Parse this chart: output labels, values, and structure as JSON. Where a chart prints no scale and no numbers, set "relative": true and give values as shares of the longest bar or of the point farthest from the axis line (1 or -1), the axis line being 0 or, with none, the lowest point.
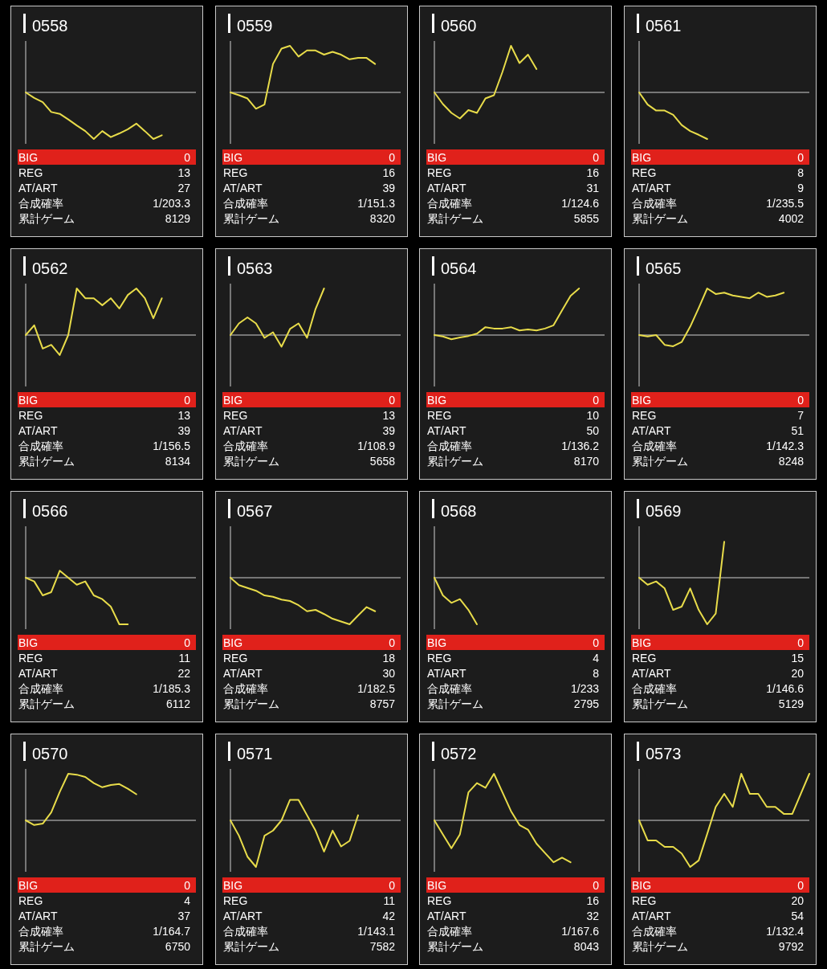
{
  "chart_data": [
    {
      "type": "line",
      "title": "0558",
      "relative": true,
      "categories": [
        null,
        null,
        null,
        null,
        null,
        null,
        null,
        null,
        null,
        null,
        null,
        null,
        null,
        null,
        null,
        null,
        null,
        null,
        null,
        null,
        null
      ],
      "series": [
        {
          "color": "#e8dc4a",
          "values": [
            0,
            -0.12,
            -0.21,
            -0.42,
            -0.46,
            -0.58,
            -0.71,
            -0.83,
            -1,
            -0.83,
            -0.96,
            -0.88,
            -0.79,
            -0.67,
            -0.83,
            -1,
            -0.92,
            null,
            null,
            null,
            null
          ]
        }
      ],
      "annotations": [
        "BIG",
        "0",
        "REG",
        "13",
        "AT/ART",
        "27",
        "合成確率",
        "1/203.3",
        "累計ゲーム",
        "8129"
      ]
    },
    {
      "type": "line",
      "title": "0559",
      "relative": true,
      "categories": [
        null,
        null,
        null,
        null,
        null,
        null,
        null,
        null,
        null,
        null,
        null,
        null,
        null,
        null,
        null,
        null,
        null,
        null,
        null,
        null,
        null
      ],
      "series": [
        {
          "color": "#e8dc4a",
          "values": [
            0,
            -0.06,
            -0.13,
            -0.35,
            -0.26,
            0.61,
            0.94,
            1,
            0.77,
            0.9,
            0.9,
            0.81,
            0.87,
            0.81,
            0.71,
            0.74,
            0.74,
            0.61,
            null,
            null,
            null
          ]
        }
      ],
      "annotations": [
        "BIG",
        "0",
        "REG",
        "16",
        "AT/ART",
        "39",
        "合成確率",
        "1/151.3",
        "累計ゲーム",
        "8320"
      ]
    },
    {
      "type": "line",
      "title": "0560",
      "relative": true,
      "categories": [
        null,
        null,
        null,
        null,
        null,
        null,
        null,
        null,
        null,
        null,
        null,
        null,
        null,
        null,
        null,
        null,
        null,
        null,
        null,
        null,
        null
      ],
      "series": [
        {
          "color": "#e8dc4a",
          "values": [
            0,
            -0.25,
            -0.44,
            -0.56,
            -0.38,
            -0.44,
            -0.13,
            -0.06,
            0.44,
            1,
            0.63,
            0.81,
            0.5,
            null,
            null,
            null,
            null,
            null,
            null,
            null,
            null
          ]
        }
      ],
      "annotations": [
        "BIG",
        "0",
        "REG",
        "16",
        "AT/ART",
        "31",
        "合成確率",
        "1/124.6",
        "累計ゲーム",
        "5855"
      ]
    },
    {
      "type": "line",
      "title": "0561",
      "relative": true,
      "categories": [
        null,
        null,
        null,
        null,
        null,
        null,
        null,
        null,
        null,
        null,
        null,
        null,
        null,
        null,
        null,
        null,
        null,
        null,
        null,
        null,
        null
      ],
      "series": [
        {
          "color": "#e8dc4a",
          "values": [
            0,
            -0.26,
            -0.39,
            -0.39,
            -0.48,
            -0.7,
            -0.83,
            -0.91,
            -1,
            null,
            null,
            null,
            null,
            null,
            null,
            null,
            null,
            null,
            null,
            null,
            null
          ]
        }
      ],
      "annotations": [
        "BIG",
        "0",
        "REG",
        "8",
        "AT/ART",
        "9",
        "合成確率",
        "1/235.5",
        "累計ゲーム",
        "4002"
      ]
    },
    {
      "type": "line",
      "title": "0562",
      "relative": true,
      "categories": [
        null,
        null,
        null,
        null,
        null,
        null,
        null,
        null,
        null,
        null,
        null,
        null,
        null,
        null,
        null,
        null,
        null,
        null,
        null,
        null,
        null
      ],
      "series": [
        {
          "color": "#e8dc4a",
          "values": [
            0,
            0.21,
            -0.29,
            -0.21,
            -0.43,
            0,
            1,
            0.79,
            0.79,
            0.64,
            0.79,
            0.57,
            0.86,
            1,
            0.79,
            0.36,
            0.79,
            null,
            null,
            null,
            null
          ]
        }
      ],
      "annotations": [
        "BIG",
        "0",
        "REG",
        "13",
        "AT/ART",
        "39",
        "合成確率",
        "1/156.5",
        "累計ゲーム",
        "8134"
      ]
    },
    {
      "type": "line",
      "title": "0563",
      "relative": true,
      "categories": [
        null,
        null,
        null,
        null,
        null,
        null,
        null,
        null,
        null,
        null,
        null,
        null,
        null,
        null,
        null,
        null,
        null,
        null,
        null,
        null,
        null
      ],
      "series": [
        {
          "color": "#e8dc4a",
          "values": [
            0,
            0.25,
            0.38,
            0.25,
            -0.06,
            0.06,
            -0.25,
            0.13,
            0.25,
            -0.06,
            0.56,
            1,
            null,
            null,
            null,
            null,
            null,
            null,
            null,
            null,
            null
          ]
        }
      ],
      "annotations": [
        "BIG",
        "0",
        "REG",
        "13",
        "AT/ART",
        "39",
        "合成確率",
        "1/108.9",
        "累計ゲーム",
        "5658"
      ]
    },
    {
      "type": "line",
      "title": "0564",
      "relative": true,
      "categories": [
        null,
        null,
        null,
        null,
        null,
        null,
        null,
        null,
        null,
        null,
        null,
        null,
        null,
        null,
        null,
        null,
        null,
        null,
        null,
        null,
        null
      ],
      "series": [
        {
          "color": "#e8dc4a",
          "values": [
            0,
            -0.03,
            -0.09,
            -0.05,
            -0.02,
            0.03,
            0.17,
            0.14,
            0.14,
            0.17,
            0.1,
            0.12,
            0.1,
            0.14,
            0.21,
            0.53,
            0.84,
            1,
            null,
            null,
            null
          ]
        }
      ],
      "annotations": [
        "BIG",
        "0",
        "REG",
        "10",
        "AT/ART",
        "50",
        "合成確率",
        "1/136.2",
        "累計ゲーム",
        "8170"
      ]
    },
    {
      "type": "line",
      "title": "0565",
      "relative": true,
      "categories": [
        null,
        null,
        null,
        null,
        null,
        null,
        null,
        null,
        null,
        null,
        null,
        null,
        null,
        null,
        null,
        null,
        null,
        null,
        null,
        null,
        null
      ],
      "series": [
        {
          "color": "#e8dc4a",
          "values": [
            0,
            -0.03,
            0,
            -0.21,
            -0.24,
            -0.15,
            0.18,
            0.58,
            1,
            0.88,
            0.91,
            0.85,
            0.82,
            0.79,
            0.91,
            0.82,
            0.85,
            0.91,
            null,
            null,
            null
          ]
        }
      ],
      "annotations": [
        "BIG",
        "0",
        "REG",
        "7",
        "AT/ART",
        "51",
        "合成確率",
        "1/142.3",
        "累計ゲーム",
        "8248"
      ]
    },
    {
      "type": "line",
      "title": "0566",
      "relative": true,
      "categories": [
        null,
        null,
        null,
        null,
        null,
        null,
        null,
        null,
        null,
        null,
        null,
        null,
        null,
        null,
        null,
        null,
        null,
        null,
        null,
        null,
        null
      ],
      "series": [
        {
          "color": "#e8dc4a",
          "values": [
            0,
            -0.08,
            -0.38,
            -0.31,
            0.15,
            0,
            -0.15,
            -0.08,
            -0.38,
            -0.46,
            -0.62,
            -1,
            -1,
            null,
            null,
            null,
            null,
            null,
            null,
            null,
            null
          ]
        }
      ],
      "annotations": [
        "BIG",
        "0",
        "REG",
        "11",
        "AT/ART",
        "22",
        "合成確率",
        "1/185.3",
        "累計ゲーム",
        "6112"
      ]
    },
    {
      "type": "line",
      "title": "0567",
      "relative": true,
      "categories": [
        null,
        null,
        null,
        null,
        null,
        null,
        null,
        null,
        null,
        null,
        null,
        null,
        null,
        null,
        null,
        null,
        null,
        null,
        null,
        null,
        null
      ],
      "series": [
        {
          "color": "#e8dc4a",
          "values": [
            0,
            -0.16,
            -0.22,
            -0.28,
            -0.38,
            -0.41,
            -0.47,
            -0.5,
            -0.59,
            -0.72,
            -0.69,
            -0.78,
            -0.88,
            -0.94,
            -1,
            -0.81,
            -0.63,
            -0.72,
            null,
            null,
            null
          ]
        }
      ],
      "annotations": [
        "BIG",
        "0",
        "REG",
        "18",
        "AT/ART",
        "30",
        "合成確率",
        "1/182.5",
        "累計ゲーム",
        "8757"
      ]
    },
    {
      "type": "line",
      "title": "0568",
      "relative": true,
      "categories": [
        null,
        null,
        null,
        null,
        null,
        null,
        null,
        null,
        null,
        null,
        null,
        null,
        null,
        null,
        null,
        null,
        null,
        null,
        null,
        null,
        null
      ],
      "series": [
        {
          "color": "#e8dc4a",
          "values": [
            0,
            -0.38,
            -0.54,
            -0.46,
            -0.69,
            -1,
            null,
            null,
            null,
            null,
            null,
            null,
            null,
            null,
            null,
            null,
            null,
            null,
            null,
            null,
            null
          ]
        }
      ],
      "annotations": [
        "BIG",
        "0",
        "REG",
        "4",
        "AT/ART",
        "8",
        "合成確率",
        "1/233",
        "累計ゲーム",
        "2795"
      ]
    },
    {
      "type": "line",
      "title": "0569",
      "relative": true,
      "categories": [
        null,
        null,
        null,
        null,
        null,
        null,
        null,
        null,
        null,
        null,
        null,
        null,
        null,
        null,
        null,
        null,
        null,
        null,
        null,
        null,
        null
      ],
      "series": [
        {
          "color": "#e8dc4a",
          "values": [
            0,
            -0.15,
            -0.08,
            -0.23,
            -0.69,
            -0.62,
            -0.23,
            -0.69,
            -1,
            -0.77,
            0.77,
            null,
            null,
            null,
            null,
            null,
            null,
            null,
            null,
            null,
            null
          ]
        }
      ],
      "annotations": [
        "BIG",
        "0",
        "REG",
        "15",
        "AT/ART",
        "20",
        "合成確率",
        "1/146.6",
        "累計ゲーム",
        "5129"
      ]
    },
    {
      "type": "line",
      "title": "0570",
      "relative": true,
      "categories": [
        null,
        null,
        null,
        null,
        null,
        null,
        null,
        null,
        null,
        null,
        null,
        null,
        null,
        null,
        null,
        null,
        null,
        null,
        null,
        null,
        null
      ],
      "series": [
        {
          "color": "#e8dc4a",
          "values": [
            0,
            -0.1,
            -0.07,
            0.17,
            0.61,
            1,
            0.98,
            0.93,
            0.8,
            0.71,
            0.76,
            0.78,
            0.68,
            0.56,
            null,
            null,
            null,
            null,
            null,
            null,
            null
          ]
        }
      ],
      "annotations": [
        "BIG",
        "0",
        "REG",
        "4",
        "AT/ART",
        "37",
        "合成確率",
        "1/164.7",
        "累計ゲーム",
        "6750"
      ]
    },
    {
      "type": "line",
      "title": "0571",
      "relative": true,
      "categories": [
        null,
        null,
        null,
        null,
        null,
        null,
        null,
        null,
        null,
        null,
        null,
        null,
        null,
        null,
        null,
        null,
        null,
        null,
        null,
        null,
        null
      ],
      "series": [
        {
          "color": "#e8dc4a",
          "values": [
            0,
            -0.33,
            -0.78,
            -1,
            -0.33,
            -0.22,
            0,
            0.44,
            0.44,
            0.11,
            -0.22,
            -0.67,
            -0.22,
            -0.56,
            -0.44,
            0.11,
            null,
            null,
            null,
            null,
            null
          ]
        }
      ],
      "annotations": [
        "BIG",
        "0",
        "REG",
        "11",
        "AT/ART",
        "42",
        "合成確率",
        "1/143.1",
        "累計ゲーム",
        "7582"
      ]
    },
    {
      "type": "line",
      "title": "0572",
      "relative": true,
      "categories": [
        null,
        null,
        null,
        null,
        null,
        null,
        null,
        null,
        null,
        null,
        null,
        null,
        null,
        null,
        null,
        null,
        null,
        null,
        null,
        null,
        null
      ],
      "series": [
        {
          "color": "#e8dc4a",
          "values": [
            0,
            -0.3,
            -0.6,
            -0.3,
            0.6,
            0.8,
            0.7,
            1,
            0.6,
            0.2,
            -0.1,
            -0.2,
            -0.5,
            -0.7,
            -0.9,
            -0.8,
            -0.9,
            null,
            null,
            null,
            null
          ]
        }
      ],
      "annotations": [
        "BIG",
        "0",
        "REG",
        "16",
        "AT/ART",
        "32",
        "合成確率",
        "1/167.6",
        "累計ゲーム",
        "8043"
      ]
    },
    {
      "type": "line",
      "title": "0573",
      "relative": true,
      "categories": [
        null,
        null,
        null,
        null,
        null,
        null,
        null,
        null,
        null,
        null,
        null,
        null,
        null,
        null,
        null,
        null,
        null,
        null,
        null,
        null,
        null
      ],
      "series": [
        {
          "color": "#e8dc4a",
          "values": [
            0,
            -0.43,
            -0.43,
            -0.57,
            -0.57,
            -0.71,
            -1,
            -0.86,
            -0.29,
            0.29,
            0.57,
            0.29,
            1,
            0.57,
            0.57,
            0.29,
            0.29,
            0.14,
            0.14,
            0.57,
            1
          ]
        }
      ],
      "annotations": [
        "BIG",
        "0",
        "REG",
        "20",
        "AT/ART",
        "54",
        "合成確率",
        "1/132.4",
        "累計ゲーム",
        "9792"
      ]
    }
  ]
}
